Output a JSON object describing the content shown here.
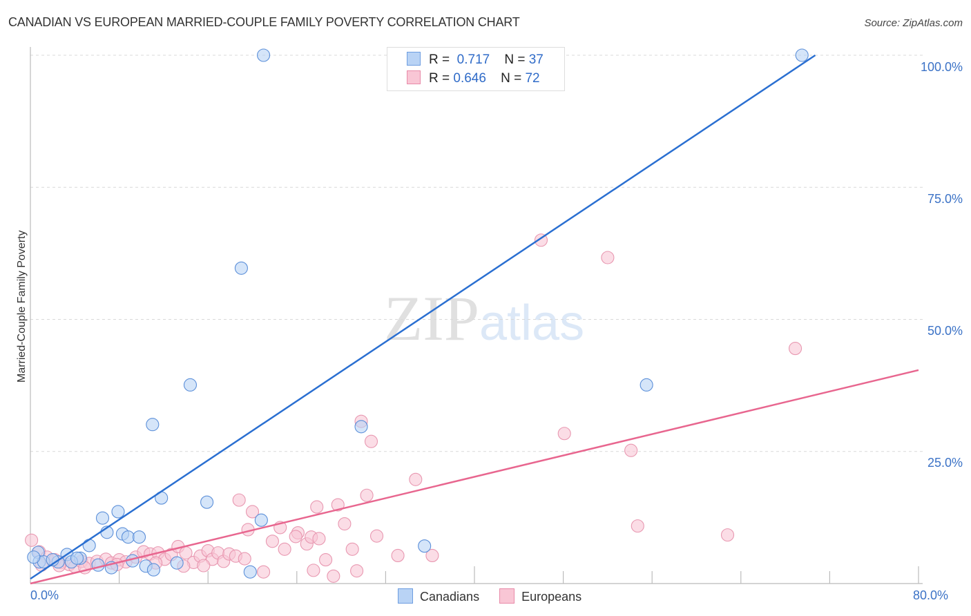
{
  "header": {
    "title": "CANADIAN VS EUROPEAN MARRIED-COUPLE FAMILY POVERTY CORRELATION CHART",
    "source": "Source: ZipAtlas.com"
  },
  "watermark": {
    "zip": "ZIP",
    "atlas": "atlas"
  },
  "legend_top": {
    "rows": [
      {
        "r_label": "R =",
        "r_value": "0.717",
        "n_label": "N =",
        "n_value": "37",
        "color": "#b9d3f5",
        "border": "#6d9de0"
      },
      {
        "r_label": "R =",
        "r_value": "0.646",
        "n_label": "N =",
        "n_value": "72",
        "color": "#f9c6d5",
        "border": "#e88aa8"
      }
    ]
  },
  "legend_bottom": {
    "items": [
      {
        "label": "Canadians",
        "color": "#b9d3f5",
        "border": "#6d9de0"
      },
      {
        "label": "Europeans",
        "color": "#f9c6d5",
        "border": "#e88aa8"
      }
    ]
  },
  "axes": {
    "ylabel": "Married-Couple Family Poverty",
    "y_ticks": [
      "100.0%",
      "75.0%",
      "50.0%",
      "25.0%"
    ],
    "x_ticks": [
      "0.0%",
      "80.0%"
    ]
  },
  "colors": {
    "canadians_fill": "#b9d3f5",
    "canadians_stroke": "#5b8fd9",
    "canadians_line": "#2a6fd1",
    "europeans_fill": "#f9c6d5",
    "europeans_stroke": "#e897b0",
    "europeans_line": "#e8668f",
    "grid": "#d8d8d8",
    "tick_label": "#3b72c6"
  },
  "chart_data": {
    "type": "scatter",
    "title": "CANADIAN VS EUROPEAN MARRIED-COUPLE FAMILY POVERTY CORRELATION CHART",
    "xlabel": "",
    "ylabel": "Married-Couple Family Poverty",
    "xlim": [
      0,
      80
    ],
    "ylim": [
      0,
      100
    ],
    "x_tick_labels": [
      "0.0%",
      "80.0%"
    ],
    "y_tick_labels": [
      "25.0%",
      "50.0%",
      "75.0%",
      "100.0%"
    ],
    "grid": true,
    "legend_position": "bottom",
    "series": [
      {
        "name": "Canadians",
        "r": 0.717,
        "n": 37,
        "trend": {
          "x": [
            0,
            70.7
          ],
          "y": [
            0.9,
            100
          ]
        },
        "points": [
          [
            21.0,
            100
          ],
          [
            69.5,
            100
          ],
          [
            36.5,
            100.3
          ],
          [
            40.0,
            100.3
          ],
          [
            19.0,
            59.7
          ],
          [
            14.4,
            37.6
          ],
          [
            55.5,
            37.6
          ],
          [
            11.0,
            30.1
          ],
          [
            29.8,
            29.7
          ],
          [
            11.8,
            16.2
          ],
          [
            15.9,
            15.4
          ],
          [
            6.5,
            12.4
          ],
          [
            7.9,
            13.6
          ],
          [
            20.8,
            12.0
          ],
          [
            6.9,
            9.7
          ],
          [
            8.3,
            9.4
          ],
          [
            8.8,
            8.8
          ],
          [
            9.8,
            8.8
          ],
          [
            5.3,
            7.2
          ],
          [
            35.5,
            7.1
          ],
          [
            3.3,
            5.5
          ],
          [
            4.5,
            4.8
          ],
          [
            0.7,
            5.9
          ],
          [
            0.8,
            4.1
          ],
          [
            1.2,
            4.1
          ],
          [
            2.5,
            4.1
          ],
          [
            3.7,
            4.1
          ],
          [
            4.2,
            4.8
          ],
          [
            6.1,
            3.5
          ],
          [
            7.3,
            3.0
          ],
          [
            9.2,
            4.3
          ],
          [
            10.4,
            3.3
          ],
          [
            11.1,
            2.6
          ],
          [
            13.2,
            3.9
          ],
          [
            19.8,
            2.2
          ],
          [
            2.0,
            4.5
          ],
          [
            0.3,
            5.0
          ]
        ]
      },
      {
        "name": "Europeans",
        "r": 0.646,
        "n": 72,
        "trend": {
          "x": [
            0,
            80
          ],
          "y": [
            0,
            40.4
          ]
        },
        "points": [
          [
            46.0,
            65.0
          ],
          [
            52.0,
            61.7
          ],
          [
            68.9,
            44.5
          ],
          [
            29.8,
            30.7
          ],
          [
            30.7,
            26.9
          ],
          [
            48.1,
            28.4
          ],
          [
            54.1,
            25.2
          ],
          [
            34.7,
            19.7
          ],
          [
            18.8,
            15.8
          ],
          [
            20.0,
            13.6
          ],
          [
            25.8,
            14.5
          ],
          [
            27.7,
            14.9
          ],
          [
            30.3,
            16.7
          ],
          [
            22.5,
            10.6
          ],
          [
            28.3,
            11.3
          ],
          [
            19.6,
            10.2
          ],
          [
            24.1,
            9.6
          ],
          [
            21.8,
            8.0
          ],
          [
            22.9,
            6.5
          ],
          [
            23.9,
            8.9
          ],
          [
            24.9,
            7.5
          ],
          [
            25.3,
            8.8
          ],
          [
            26.0,
            8.5
          ],
          [
            31.2,
            9.0
          ],
          [
            29.0,
            6.5
          ],
          [
            54.7,
            10.9
          ],
          [
            62.8,
            9.2
          ],
          [
            33.1,
            5.3
          ],
          [
            36.2,
            5.3
          ],
          [
            25.5,
            2.5
          ],
          [
            26.6,
            4.5
          ],
          [
            27.3,
            1.4
          ],
          [
            29.4,
            2.4
          ],
          [
            21.0,
            2.2
          ],
          [
            0.1,
            8.2
          ],
          [
            0.8,
            6.0
          ],
          [
            1.5,
            5.0
          ],
          [
            2.2,
            4.5
          ],
          [
            2.8,
            4.0
          ],
          [
            3.5,
            3.6
          ],
          [
            4.0,
            3.2
          ],
          [
            4.6,
            4.2
          ],
          [
            5.3,
            3.8
          ],
          [
            6.0,
            4.2
          ],
          [
            6.8,
            4.6
          ],
          [
            7.3,
            3.9
          ],
          [
            8.0,
            4.5
          ],
          [
            8.6,
            4.1
          ],
          [
            9.5,
            5.0
          ],
          [
            10.2,
            6.0
          ],
          [
            10.8,
            5.6
          ],
          [
            11.5,
            5.8
          ],
          [
            12.1,
            4.6
          ],
          [
            12.7,
            5.5
          ],
          [
            13.3,
            7.0
          ],
          [
            14.0,
            5.8
          ],
          [
            14.7,
            4.0
          ],
          [
            15.3,
            5.2
          ],
          [
            16.0,
            6.2
          ],
          [
            16.4,
            4.6
          ],
          [
            16.9,
            5.8
          ],
          [
            17.4,
            4.2
          ],
          [
            17.9,
            5.6
          ],
          [
            18.5,
            5.2
          ],
          [
            19.3,
            4.7
          ],
          [
            1.0,
            3.5
          ],
          [
            2.6,
            3.4
          ],
          [
            4.9,
            3.0
          ],
          [
            7.8,
            3.6
          ],
          [
            11.3,
            3.9
          ],
          [
            13.8,
            3.3
          ],
          [
            15.6,
            3.4
          ]
        ]
      }
    ]
  }
}
